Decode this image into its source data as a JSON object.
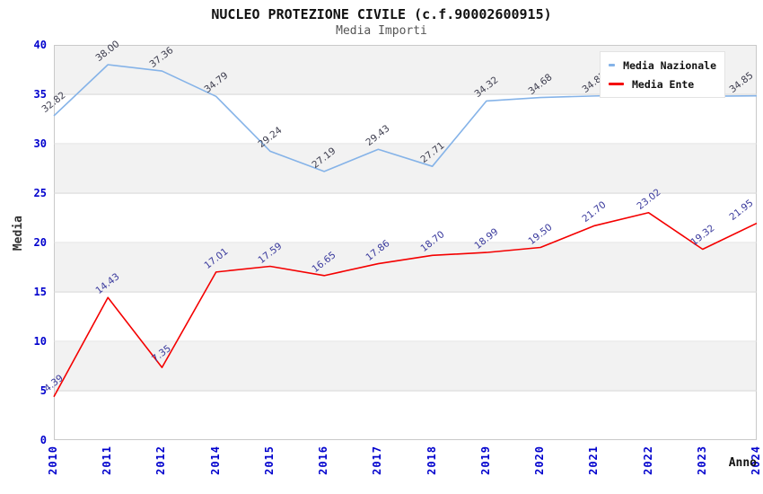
{
  "title": "NUCLEO PROTEZIONE CIVILE (c.f.90002600915)",
  "subtitle": "Media Importi",
  "legend": {
    "items": [
      {
        "label": "Media Nazionale",
        "color": "#85b3e8"
      },
      {
        "label": "Media Ente",
        "color": "#f40000"
      }
    ]
  },
  "chart_data": {
    "type": "line",
    "x": [
      "2010",
      "2011",
      "2012",
      "2014",
      "2015",
      "2016",
      "2017",
      "2018",
      "2019",
      "2020",
      "2021",
      "2022",
      "2023",
      "2024"
    ],
    "series": [
      {
        "name": "Media Nazionale",
        "color": "#85b3e8",
        "label_color": "#3d3d4e",
        "values": [
          32.82,
          38.0,
          37.36,
          34.79,
          29.24,
          27.19,
          29.43,
          27.71,
          34.32,
          34.68,
          34.83,
          34.95,
          34.8,
          34.85
        ],
        "labels": [
          "32.82",
          "38.00",
          "37.36",
          "34.79",
          "29.24",
          "27.19",
          "29.43",
          "27.71",
          "34.32",
          "34.68",
          "34.83",
          "",
          "",
          "34.85"
        ]
      },
      {
        "name": "Media Ente",
        "color": "#f40000",
        "label_color": "#3a3a9d",
        "values": [
          4.39,
          14.43,
          7.35,
          17.01,
          17.59,
          16.65,
          17.86,
          18.7,
          18.99,
          19.5,
          21.7,
          23.02,
          19.32,
          21.95
        ],
        "labels": [
          "4.39",
          "14.43",
          "7.35",
          "17.01",
          "17.59",
          "16.65",
          "17.86",
          "18.70",
          "18.99",
          "19.50",
          "21.70",
          "23.02",
          "19.32",
          "21.95"
        ]
      }
    ],
    "xlabel": "Anno",
    "ylabel": "Media",
    "y_ticks": [
      0,
      5,
      10,
      15,
      20,
      25,
      30,
      35,
      40
    ],
    "ylim": [
      0,
      40
    ],
    "grid": "horizontal-bands-alternating",
    "legend_position": "top-right",
    "band_color": "#f2f2f2",
    "gridline_color": "#dcdcdc",
    "tick_label_color": "#0000cd"
  }
}
